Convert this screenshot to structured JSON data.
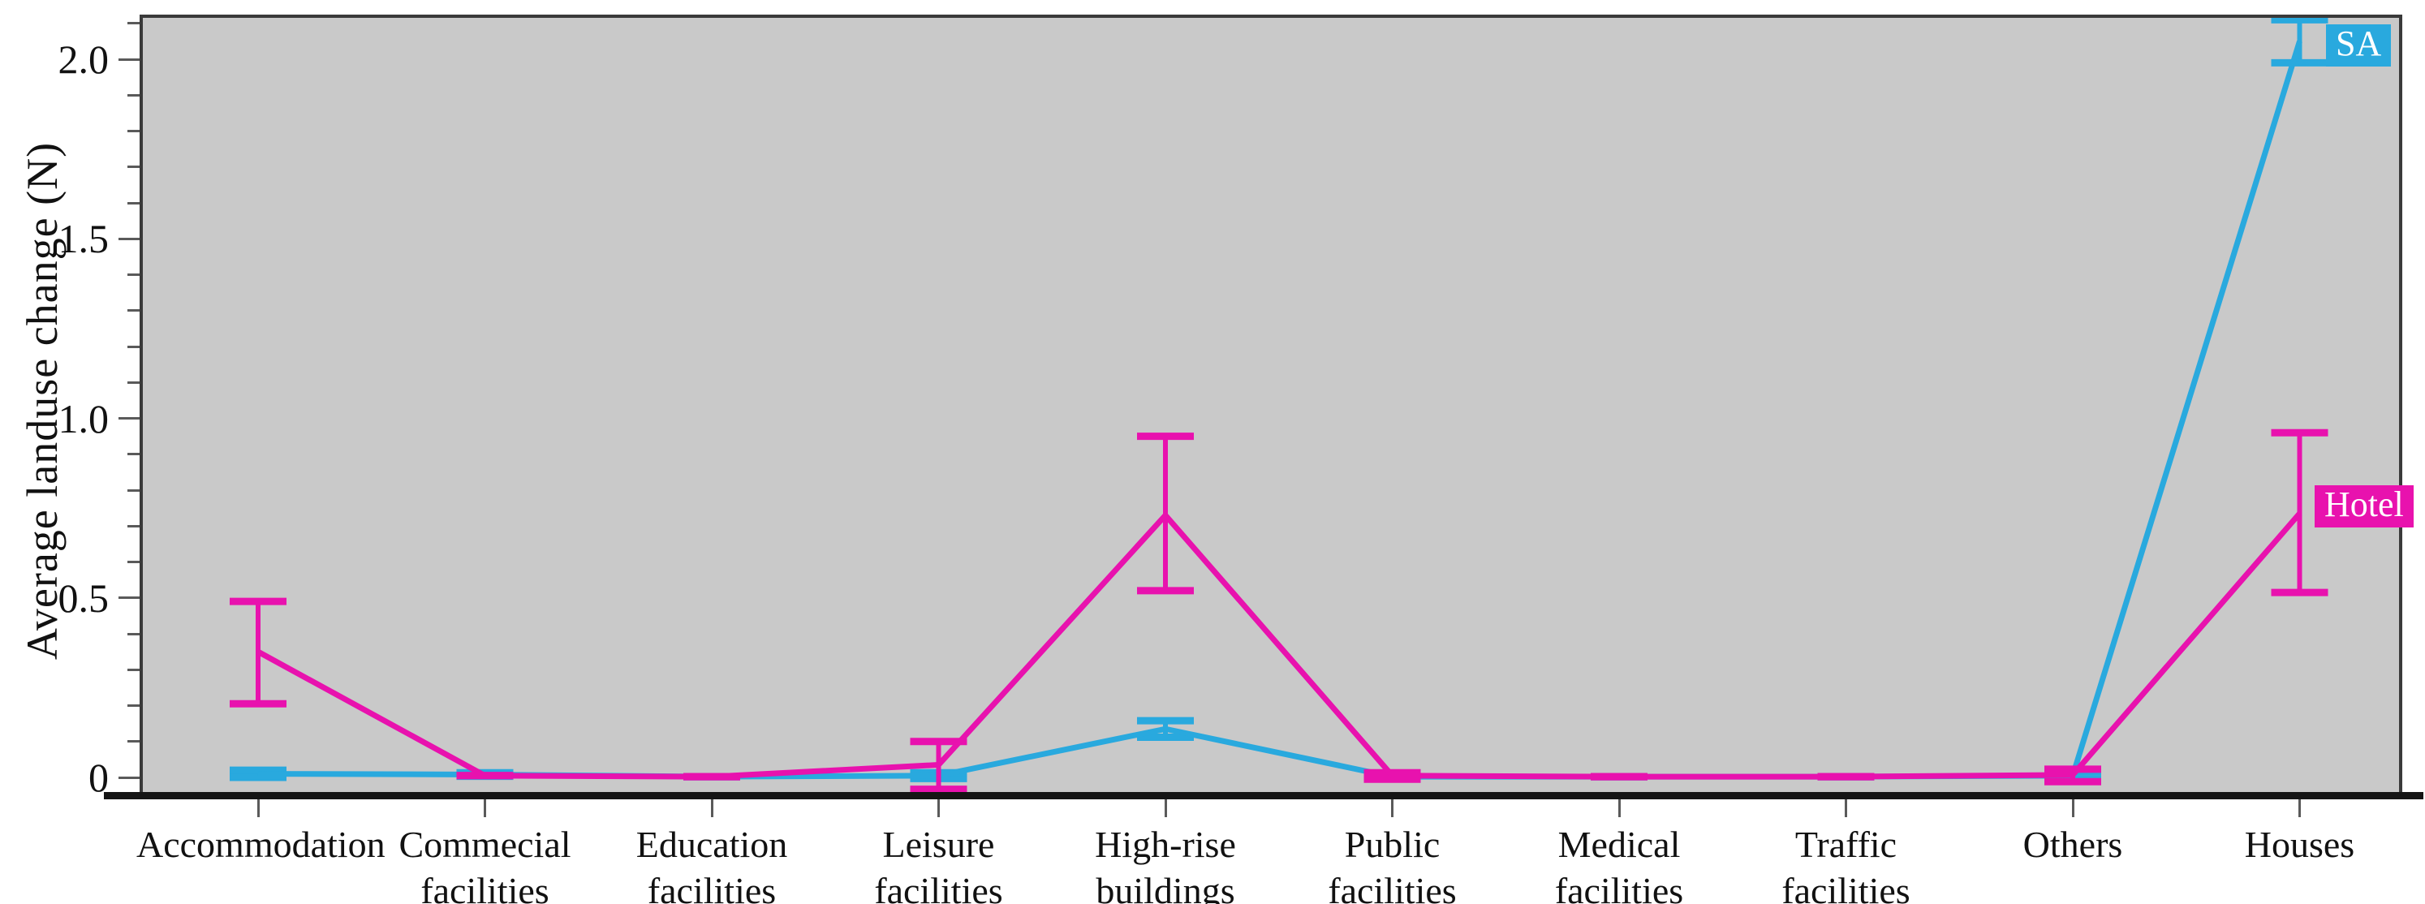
{
  "chart_data": {
    "type": "line",
    "title": "",
    "xlabel": "",
    "ylabel": "Average landuse change (N)",
    "plot_background": "#C9C9C9",
    "axis_color": "#3A3A3A",
    "tick_color": "#5A5A5A",
    "grid": false,
    "legend_position": "inside-right",
    "ylim": [
      -0.05,
      2.125
    ],
    "minor_tick_step": 0.1,
    "yticks": [
      {
        "value": 0,
        "label": "0"
      },
      {
        "value": 0.5,
        "label": "0.5"
      },
      {
        "value": 1.0,
        "label": "1.0"
      },
      {
        "value": 1.5,
        "label": "1.5"
      },
      {
        "value": 2.0,
        "label": "2.0"
      }
    ],
    "categories": [
      "Accommodation",
      "Commecial\nfacilities",
      "Education\nfacilities",
      "Leisure\nfacilities",
      "High-rise\nbuildings",
      "Public\nfacilities",
      "Medical\nfacilities",
      "Traffic\nfacilities",
      "Others",
      "Houses"
    ],
    "series": [
      {
        "name": "SA",
        "color": "#29A9DE",
        "values": [
          0.01,
          0.008,
          0.002,
          0.005,
          0.135,
          0.002,
          0.002,
          0.002,
          0.005,
          2.05
        ],
        "err_low": [
          0.0,
          0.003,
          0.002,
          -0.003,
          0.112,
          0.002,
          0.002,
          0.002,
          -0.005,
          1.99
        ],
        "err_high": [
          0.02,
          0.013,
          0.002,
          0.013,
          0.158,
          0.002,
          0.002,
          0.002,
          0.015,
          2.11
        ]
      },
      {
        "name": "Hotel",
        "color": "#E812AE",
        "values": [
          0.35,
          0.005,
          0.002,
          0.035,
          0.73,
          0.005,
          0.002,
          0.002,
          0.007,
          0.735
        ],
        "err_low": [
          0.205,
          0.005,
          0.002,
          -0.033,
          0.52,
          -0.005,
          0.002,
          0.002,
          -0.012,
          0.515
        ],
        "err_high": [
          0.49,
          0.005,
          0.002,
          0.1,
          0.95,
          0.013,
          0.002,
          0.002,
          0.023,
          0.96
        ]
      }
    ]
  }
}
